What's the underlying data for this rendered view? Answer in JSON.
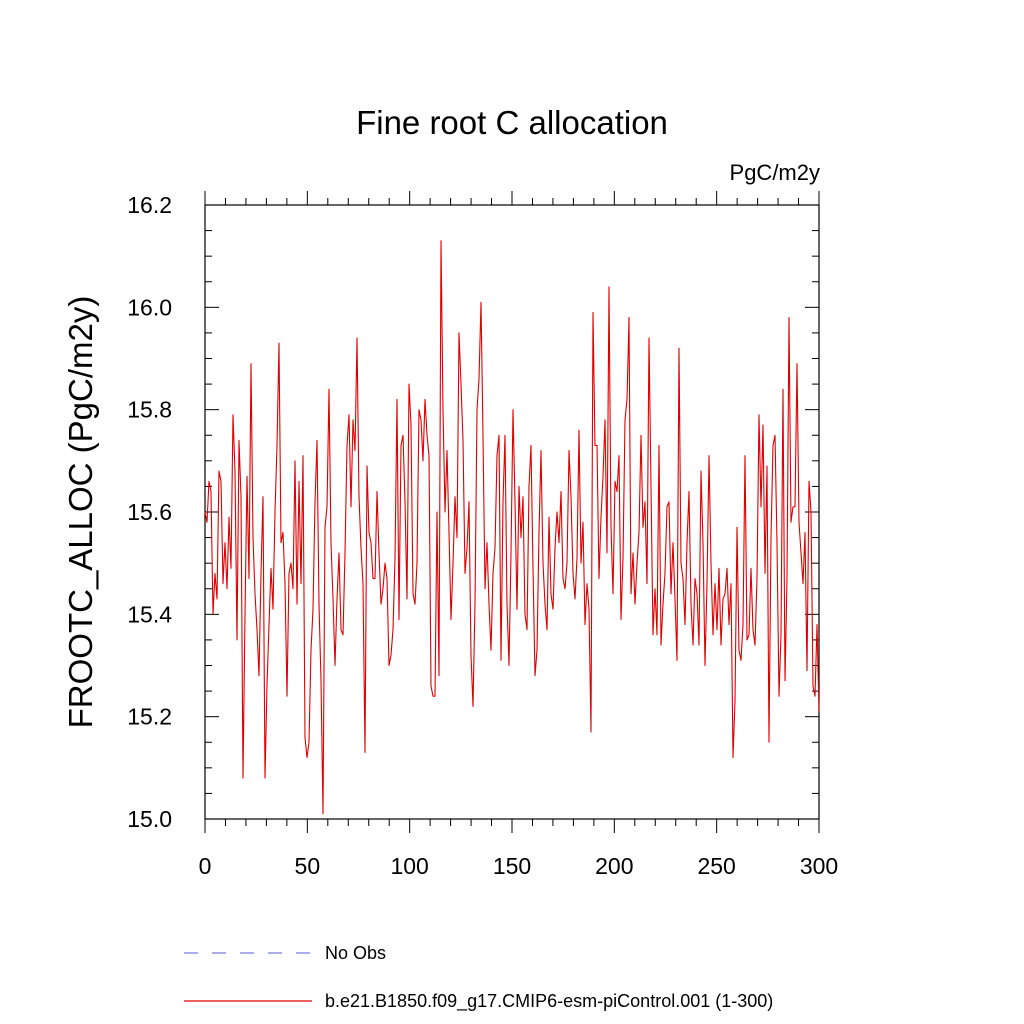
{
  "chart_data": {
    "type": "line",
    "title": "Fine root C allocation",
    "units_label": "PgC/m2y",
    "ylabel": "FROOTC_ALLOC  (PgC/m2y)",
    "xlabel": "",
    "xlim": [
      0,
      300
    ],
    "ylim": [
      15.0,
      16.2
    ],
    "xticks": [
      0,
      50,
      100,
      150,
      200,
      250,
      300
    ],
    "xtick_labels": [
      "0",
      "50",
      "100",
      "150",
      "200",
      "250",
      "300"
    ],
    "yticks": [
      15.0,
      15.2,
      15.4,
      15.6,
      15.8,
      16.0,
      16.2
    ],
    "ytick_labels": [
      "15.0",
      "15.2",
      "15.4",
      "15.6",
      "15.8",
      "16.0",
      "16.2"
    ],
    "grid": false,
    "legend_position": "bottom",
    "series": [
      {
        "name": "No Obs",
        "color": "#7b7bd6",
        "style": "dashed",
        "values": []
      },
      {
        "name": "b.e21.B1850.f09_g17.CMIP6-esm-piControl.001 (1-300)",
        "color": "#e00000",
        "style": "solid",
        "values": [
          15.6,
          15.58,
          15.66,
          15.64,
          15.4,
          15.48,
          15.43,
          15.68,
          15.66,
          15.46,
          15.54,
          15.45,
          15.59,
          15.49,
          15.79,
          15.68,
          15.35,
          15.74,
          15.63,
          15.08,
          15.4,
          15.67,
          15.47,
          15.89,
          15.55,
          15.44,
          15.37,
          15.28,
          15.48,
          15.63,
          15.08,
          15.26,
          15.38,
          15.49,
          15.41,
          15.6,
          15.73,
          15.93,
          15.54,
          15.56,
          15.46,
          15.24,
          15.48,
          15.5,
          15.45,
          15.7,
          15.42,
          15.66,
          15.46,
          15.71,
          15.16,
          15.12,
          15.15,
          15.33,
          15.41,
          15.62,
          15.74,
          15.42,
          15.27,
          15.01,
          15.57,
          15.61,
          15.84,
          15.54,
          15.43,
          15.3,
          15.43,
          15.52,
          15.37,
          15.36,
          15.52,
          15.73,
          15.79,
          15.61,
          15.78,
          15.72,
          15.94,
          15.63,
          15.53,
          15.46,
          15.13,
          15.69,
          15.56,
          15.54,
          15.47,
          15.47,
          15.64,
          15.52,
          15.42,
          15.45,
          15.5,
          15.47,
          15.3,
          15.32,
          15.37,
          15.51,
          15.82,
          15.39,
          15.73,
          15.75,
          15.62,
          15.43,
          15.85,
          15.77,
          15.44,
          15.42,
          15.5,
          15.8,
          15.78,
          15.7,
          15.82,
          15.75,
          15.71,
          15.26,
          15.24,
          15.24,
          15.6,
          15.28,
          16.13,
          15.8,
          15.6,
          15.72,
          15.56,
          15.39,
          15.5,
          15.63,
          15.55,
          15.95,
          15.85,
          15.74,
          15.48,
          15.53,
          15.62,
          15.32,
          15.22,
          15.42,
          15.8,
          15.86,
          16.01,
          15.75,
          15.45,
          15.54,
          15.42,
          15.33,
          15.48,
          15.53,
          15.71,
          15.75,
          15.31,
          15.62,
          15.75,
          15.42,
          15.3,
          15.52,
          15.8,
          15.62,
          15.41,
          15.65,
          15.55,
          15.63,
          15.4,
          15.37,
          15.65,
          15.73,
          15.49,
          15.28,
          15.33,
          15.56,
          15.72,
          15.5,
          15.42,
          15.37,
          15.59,
          15.44,
          15.41,
          15.53,
          15.6,
          15.54,
          15.64,
          15.47,
          15.45,
          15.5,
          15.72,
          15.63,
          15.48,
          15.43,
          15.51,
          15.76,
          15.5,
          15.58,
          15.38,
          15.46,
          15.41,
          15.17,
          15.99,
          15.73,
          15.73,
          15.47,
          15.59,
          15.67,
          15.78,
          15.52,
          16.04,
          15.57,
          15.44,
          15.66,
          15.64,
          15.71,
          15.39,
          15.51,
          15.78,
          15.82,
          15.98,
          15.44,
          15.52,
          15.42,
          15.5,
          15.56,
          15.75,
          15.57,
          15.62,
          15.46,
          15.94,
          15.65,
          15.36,
          15.45,
          15.36,
          15.73,
          15.34,
          15.42,
          15.48,
          15.61,
          15.62,
          15.44,
          15.54,
          15.43,
          15.31,
          15.92,
          15.5,
          15.47,
          15.38,
          15.54,
          15.64,
          15.42,
          15.34,
          15.47,
          15.44,
          15.34,
          15.68,
          15.54,
          15.3,
          15.46,
          15.71,
          15.5,
          15.36,
          15.46,
          15.37,
          15.49,
          15.34,
          15.43,
          15.44,
          15.49,
          15.38,
          15.46,
          15.12,
          15.23,
          15.57,
          15.33,
          15.31,
          15.38,
          15.71,
          15.35,
          15.36,
          15.49,
          15.37,
          15.34,
          15.47,
          15.79,
          15.61,
          15.77,
          15.48,
          15.69,
          15.15,
          15.55,
          15.73,
          15.75,
          15.54,
          15.24,
          15.36,
          15.84,
          15.27,
          15.47,
          15.98,
          15.58,
          15.61,
          15.61,
          15.89,
          15.58,
          15.52,
          15.46,
          15.56,
          15.29,
          15.66,
          15.6,
          15.26,
          15.24,
          15.38,
          15.21
        ]
      }
    ]
  }
}
